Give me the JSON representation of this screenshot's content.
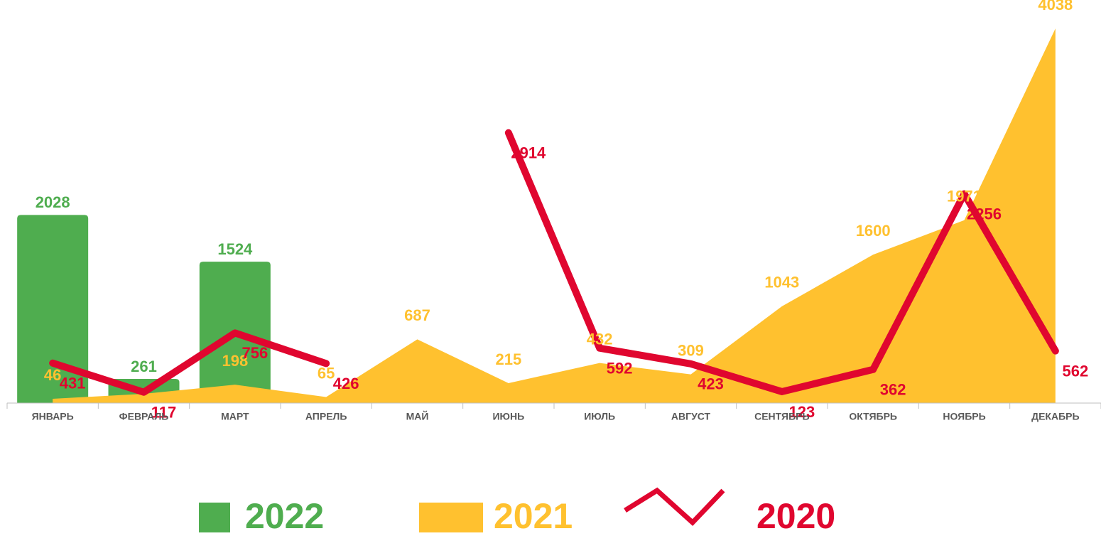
{
  "chart_data": {
    "type": "combo",
    "categories": [
      "ЯНВАРЬ",
      "ФЕВРАЛЬ",
      "МАРТ",
      "АПРЕЛЬ",
      "МАЙ",
      "ИЮНЬ",
      "ИЮЛЬ",
      "АВГУСТ",
      "СЕНТЯБРЬ",
      "ОКТЯБРЬ",
      "НОЯБРЬ",
      "ДЕКАБРЬ"
    ],
    "ylim": [
      0,
      4100
    ],
    "series": [
      {
        "name": "2022",
        "type": "bar",
        "color": "#4fad4f",
        "values": [
          2028,
          261,
          1524,
          null,
          null,
          null,
          null,
          null,
          null,
          null,
          null,
          null
        ]
      },
      {
        "name": "2021",
        "type": "area",
        "color": "#ffc12f",
        "values": [
          46,
          100,
          198,
          65,
          687,
          215,
          432,
          309,
          1043,
          1600,
          1971,
          4038
        ],
        "value_labels": [
          "46",
          null,
          "198",
          "65",
          "687",
          "215",
          "432",
          "309",
          "1043",
          "1600",
          "1971",
          "4038"
        ]
      },
      {
        "name": "2020",
        "type": "line",
        "color": "#e0062f",
        "values": [
          431,
          117,
          756,
          426,
          null,
          2914,
          592,
          423,
          123,
          362,
          2256,
          562
        ]
      }
    ]
  }
}
